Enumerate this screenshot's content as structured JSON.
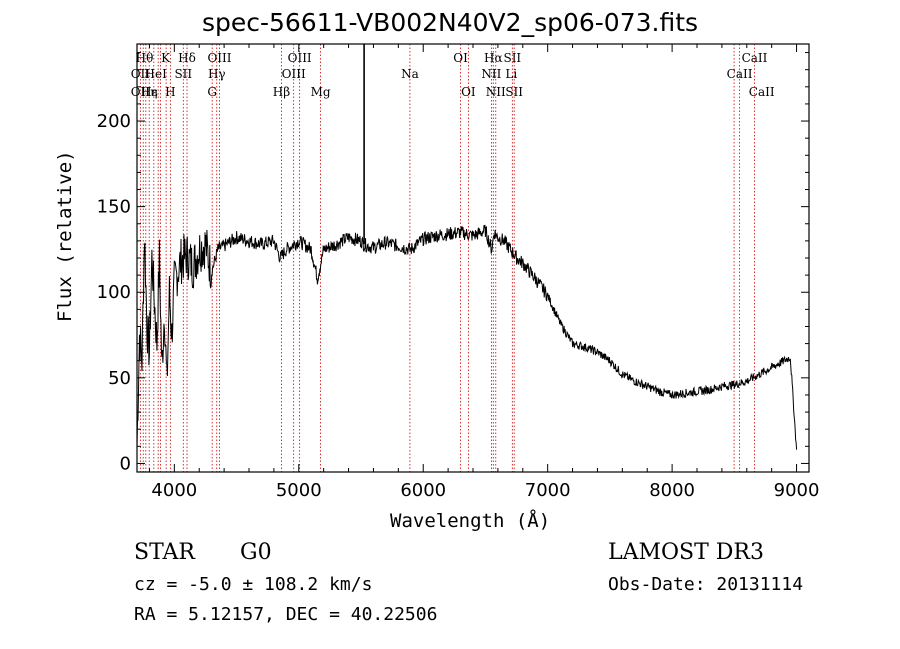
{
  "chart_data": {
    "type": "line",
    "title": "spec-56611-VB002N40V2_sp06-073.fits",
    "xlabel": "Wavelength (Å)",
    "ylabel": "Flux (relative)",
    "xlim": [
      3700,
      9100
    ],
    "ylim": [
      -5,
      245
    ],
    "xticks": [
      4000,
      5000,
      6000,
      7000,
      8000,
      9000
    ],
    "yticks": [
      0,
      50,
      100,
      150,
      200
    ],
    "series": [
      {
        "name": "spectrum",
        "x": [
          3700,
          3720,
          3740,
          3760,
          3780,
          3800,
          3820,
          3840,
          3860,
          3880,
          3900,
          3920,
          3940,
          3960,
          3980,
          4000,
          4050,
          4100,
          4150,
          4200,
          4250,
          4300,
          4350,
          4400,
          4500,
          4600,
          4700,
          4800,
          4850,
          4900,
          5000,
          5100,
          5150,
          5200,
          5300,
          5400,
          5500,
          5520,
          5600,
          5700,
          5800,
          5900,
          6000,
          6100,
          6200,
          6300,
          6400,
          6500,
          6550,
          6570,
          6600,
          6650,
          6700,
          6750,
          6800,
          6900,
          7000,
          7100,
          7200,
          7300,
          7400,
          7500,
          7600,
          7700,
          7800,
          7900,
          8000,
          8100,
          8200,
          8300,
          8400,
          8500,
          8600,
          8700,
          8800,
          8900,
          8950,
          9000
        ],
        "y": [
          10,
          75,
          60,
          135,
          80,
          65,
          120,
          95,
          70,
          120,
          55,
          90,
          45,
          100,
          75,
          105,
          118,
          122,
          115,
          125,
          128,
          112,
          125,
          127,
          132,
          130,
          128,
          130,
          120,
          125,
          130,
          125,
          108,
          125,
          128,
          132,
          130,
          128,
          126,
          129,
          127,
          125,
          131,
          133,
          134,
          135,
          133,
          136,
          125,
          135,
          132,
          130,
          125,
          120,
          117,
          108,
          98,
          82,
          70,
          68,
          65,
          60,
          52,
          48,
          45,
          42,
          40,
          41,
          42,
          43,
          45,
          46,
          48,
          52,
          56,
          60,
          62,
          8
        ],
        "color": "#000000"
      },
      {
        "name": "spike",
        "x": [
          5525,
          5525
        ],
        "y": [
          128,
          245
        ],
        "color": "#000000"
      }
    ],
    "reference_lines": {
      "color": "#cc0000",
      "x": [
        3727,
        3750,
        3771,
        3798,
        3835,
        3870,
        3889,
        3934,
        3968,
        4072,
        4102,
        4304,
        4341,
        4363,
        4861,
        4959,
        5007,
        5175,
        5893,
        6300,
        6363,
        6548,
        6563,
        6583,
        6716,
        6731,
        8498,
        8542,
        8662
      ]
    },
    "annotations": [
      {
        "text": "Hθ",
        "x": 3760,
        "row": 1
      },
      {
        "text": "K",
        "x": 3930,
        "row": 1
      },
      {
        "text": "Hδ",
        "x": 4102,
        "row": 1
      },
      {
        "text": "OIII",
        "x": 4363,
        "row": 1
      },
      {
        "text": "OIII",
        "x": 5007,
        "row": 1
      },
      {
        "text": "OI",
        "x": 6300,
        "row": 1
      },
      {
        "text": "Hα",
        "x": 6563,
        "row": 1
      },
      {
        "text": "SII",
        "x": 6716,
        "row": 1
      },
      {
        "text": "CaII",
        "x": 8662,
        "row": 1
      },
      {
        "text": "OII",
        "x": 3727,
        "row": 2
      },
      {
        "text": "HeI",
        "x": 3850,
        "row": 2
      },
      {
        "text": "SII",
        "x": 4072,
        "row": 2
      },
      {
        "text": "Hγ",
        "x": 4341,
        "row": 2
      },
      {
        "text": "OIII",
        "x": 4959,
        "row": 2
      },
      {
        "text": "Na",
        "x": 5893,
        "row": 2
      },
      {
        "text": "NII",
        "x": 6548,
        "row": 2
      },
      {
        "text": "Li",
        "x": 6708,
        "row": 2
      },
      {
        "text": "CaII",
        "x": 8542,
        "row": 2
      },
      {
        "text": "OII",
        "x": 3727,
        "row": 3
      },
      {
        "text": "Hε",
        "x": 3800,
        "row": 3
      },
      {
        "text": "η",
        "x": 3835,
        "row": 3
      },
      {
        "text": "H",
        "x": 3968,
        "row": 3
      },
      {
        "text": "G",
        "x": 4304,
        "row": 3
      },
      {
        "text": "Hβ",
        "x": 4861,
        "row": 3
      },
      {
        "text": "Mg",
        "x": 5175,
        "row": 3
      },
      {
        "text": "OI",
        "x": 6363,
        "row": 3
      },
      {
        "text": "NII",
        "x": 6583,
        "row": 3
      },
      {
        "text": "SII",
        "x": 6731,
        "row": 3
      },
      {
        "text": "CaII",
        "x": 8720,
        "row": 3
      }
    ]
  },
  "info": {
    "object_class": "STAR",
    "subclass": "G0",
    "survey": "LAMOST DR3",
    "redshift": "cz =  -5.0 ± 108.2 km/s",
    "obs_date": "Obs-Date: 20131114",
    "coords": "RA =   5.12157, DEC =  40.22506"
  }
}
